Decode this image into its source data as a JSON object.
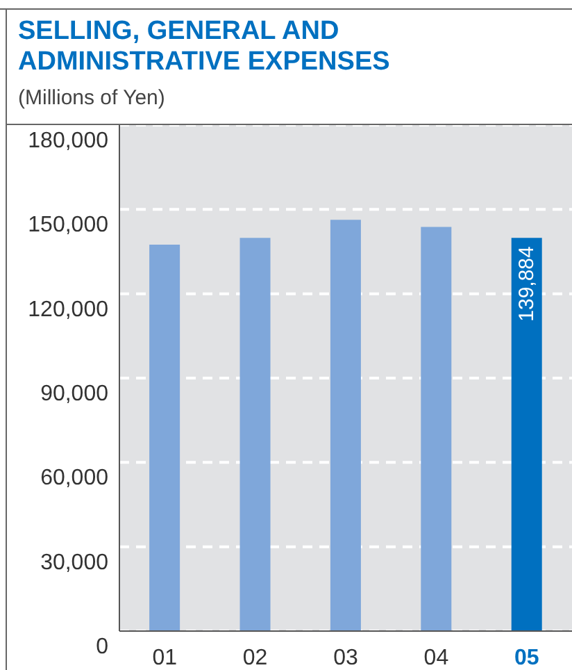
{
  "chart_data": {
    "type": "bar",
    "title": "SELLING, GENERAL AND ADMINISTRATIVE EXPENSES",
    "subtitle": "(Millions of Yen)",
    "categories": [
      "01",
      "02",
      "03",
      "04",
      "05"
    ],
    "values": [
      137500,
      139900,
      146300,
      143800,
      139884
    ],
    "colors": [
      "#7fa7da",
      "#7fa7da",
      "#7fa7da",
      "#7fa7da",
      "#0070c0"
    ],
    "value_labels": [
      null,
      null,
      null,
      null,
      "139,884"
    ],
    "ylim": [
      0,
      180000
    ],
    "yticks": [
      0,
      {
        "value": 30000,
        "label": "30,000"
      },
      {
        "value": 60000,
        "label": "60,000"
      },
      {
        "value": 90000,
        "label": "90,000"
      },
      {
        "value": 120000,
        "label": "120,000"
      },
      {
        "value": 150000,
        "label": "150,000"
      },
      {
        "value": 180000,
        "label": "180,000"
      }
    ],
    "grid": "y"
  }
}
